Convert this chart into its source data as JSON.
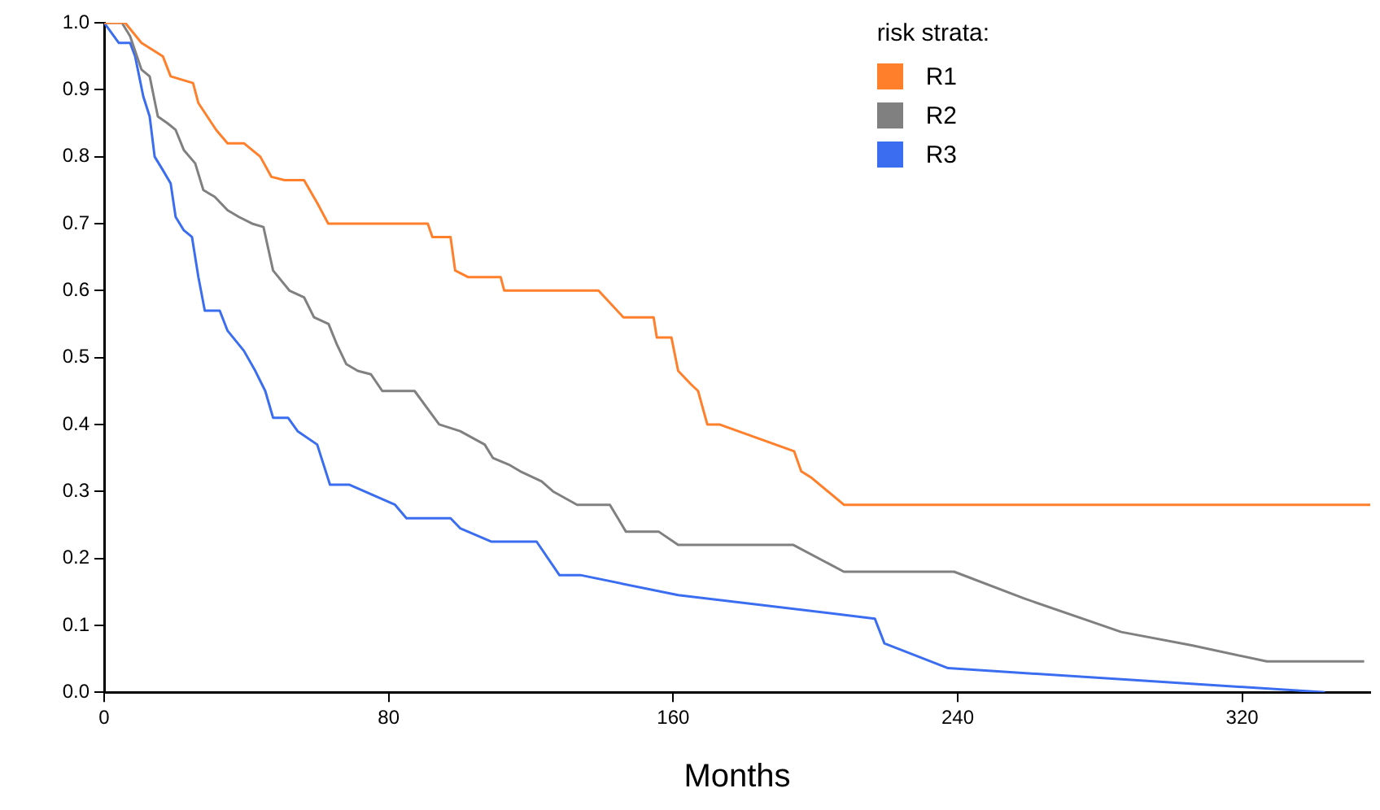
{
  "chart_data": {
    "type": "line",
    "xlabel": "Months",
    "legend_title": "risk strata:",
    "legend": "top right",
    "grid": false,
    "marker": "none",
    "line_style": "solid",
    "xlim": [
      0,
      356
    ],
    "xticks": [
      0,
      80,
      160,
      240,
      320
    ],
    "ylim": [
      0,
      1
    ],
    "yticks": [
      {
        "value": 0,
        "label": "0.0"
      },
      {
        "value": 0.1,
        "label": "0.1"
      },
      {
        "value": 0.2,
        "label": "0.2"
      },
      {
        "value": 0.3,
        "label": "0.3"
      },
      {
        "value": 0.4,
        "label": "0.4"
      },
      {
        "value": 0.5,
        "label": "0.5"
      },
      {
        "value": 0.6,
        "label": "0.6"
      },
      {
        "value": 0.7,
        "label": "0.7"
      },
      {
        "value": 0.8,
        "label": "0.8"
      },
      {
        "value": 0.9,
        "label": "0.9"
      },
      {
        "value": 1,
        "label": "1.0"
      }
    ],
    "series": [
      {
        "name": "R1",
        "color": "#ff7f2a",
        "x": [
          0,
          5.9,
          10.5,
          16.5,
          18.7,
          25,
          26.5,
          31.5,
          34.7,
          39.3,
          43.9,
          47,
          50.7,
          56.2,
          60,
          63,
          91,
          92.3,
          97.4,
          98.7,
          102.4,
          111.5,
          112.5,
          139,
          146,
          154.5,
          155.4,
          159.5,
          161.4,
          165,
          167,
          169.6,
          173,
          194,
          196,
          199,
          208,
          356
        ],
        "values": [
          1,
          1,
          0.97,
          0.95,
          0.92,
          0.91,
          0.88,
          0.84,
          0.82,
          0.82,
          0.8,
          0.77,
          0.765,
          0.765,
          0.73,
          0.7,
          0.7,
          0.68,
          0.68,
          0.63,
          0.62,
          0.62,
          0.6,
          0.6,
          0.56,
          0.56,
          0.53,
          0.53,
          0.48,
          0.46,
          0.45,
          0.4,
          0.4,
          0.36,
          0.33,
          0.32,
          0.28,
          0.28
        ]
      },
      {
        "name": "R2",
        "color": "#808080",
        "x": [
          0,
          5,
          7.3,
          10.5,
          12.8,
          15.1,
          17.8,
          20.1,
          22.4,
          25.6,
          27.9,
          31.1,
          34.7,
          37.9,
          41.6,
          44.8,
          47.5,
          52.1,
          56.2,
          59,
          63.1,
          65.4,
          68.1,
          71.3,
          75,
          78.2,
          87.3,
          94.2,
          100.1,
          107,
          109.3,
          113.8,
          117,
          123,
          126.2,
          133,
          142.2,
          146.7,
          155.9,
          161.4,
          193.8,
          208,
          239,
          258.7,
          286,
          305.8,
          326.9,
          354.3
        ],
        "values": [
          1,
          1,
          0.98,
          0.93,
          0.92,
          0.86,
          0.85,
          0.84,
          0.81,
          0.79,
          0.75,
          0.74,
          0.72,
          0.71,
          0.7,
          0.695,
          0.63,
          0.6,
          0.59,
          0.56,
          0.55,
          0.52,
          0.49,
          0.48,
          0.475,
          0.45,
          0.45,
          0.4,
          0.39,
          0.37,
          0.35,
          0.34,
          0.33,
          0.315,
          0.3,
          0.28,
          0.28,
          0.24,
          0.24,
          0.22,
          0.22,
          0.18,
          0.18,
          0.14,
          0.09,
          0.07,
          0.046,
          0.046
        ]
      },
      {
        "name": "R3",
        "color": "#3a6df0",
        "x": [
          0,
          4.1,
          7.3,
          8.7,
          11,
          12.8,
          14.2,
          16.5,
          18.7,
          20.1,
          22.4,
          24.7,
          26.5,
          28.3,
          32.5,
          34.7,
          39.3,
          42.5,
          45.3,
          47.5,
          51.7,
          54.4,
          59.9,
          63.5,
          69,
          81.8,
          85,
          97.4,
          100.1,
          108.8,
          121.6,
          128,
          133.9,
          161.4,
          216.7,
          219.4,
          237.3,
          343.3
        ],
        "values": [
          1,
          0.97,
          0.97,
          0.95,
          0.89,
          0.86,
          0.8,
          0.78,
          0.76,
          0.71,
          0.69,
          0.68,
          0.62,
          0.57,
          0.57,
          0.54,
          0.51,
          0.48,
          0.45,
          0.41,
          0.41,
          0.39,
          0.37,
          0.31,
          0.31,
          0.28,
          0.26,
          0.26,
          0.245,
          0.225,
          0.225,
          0.175,
          0.175,
          0.145,
          0.11,
          0.073,
          0.036,
          0
        ]
      }
    ]
  }
}
